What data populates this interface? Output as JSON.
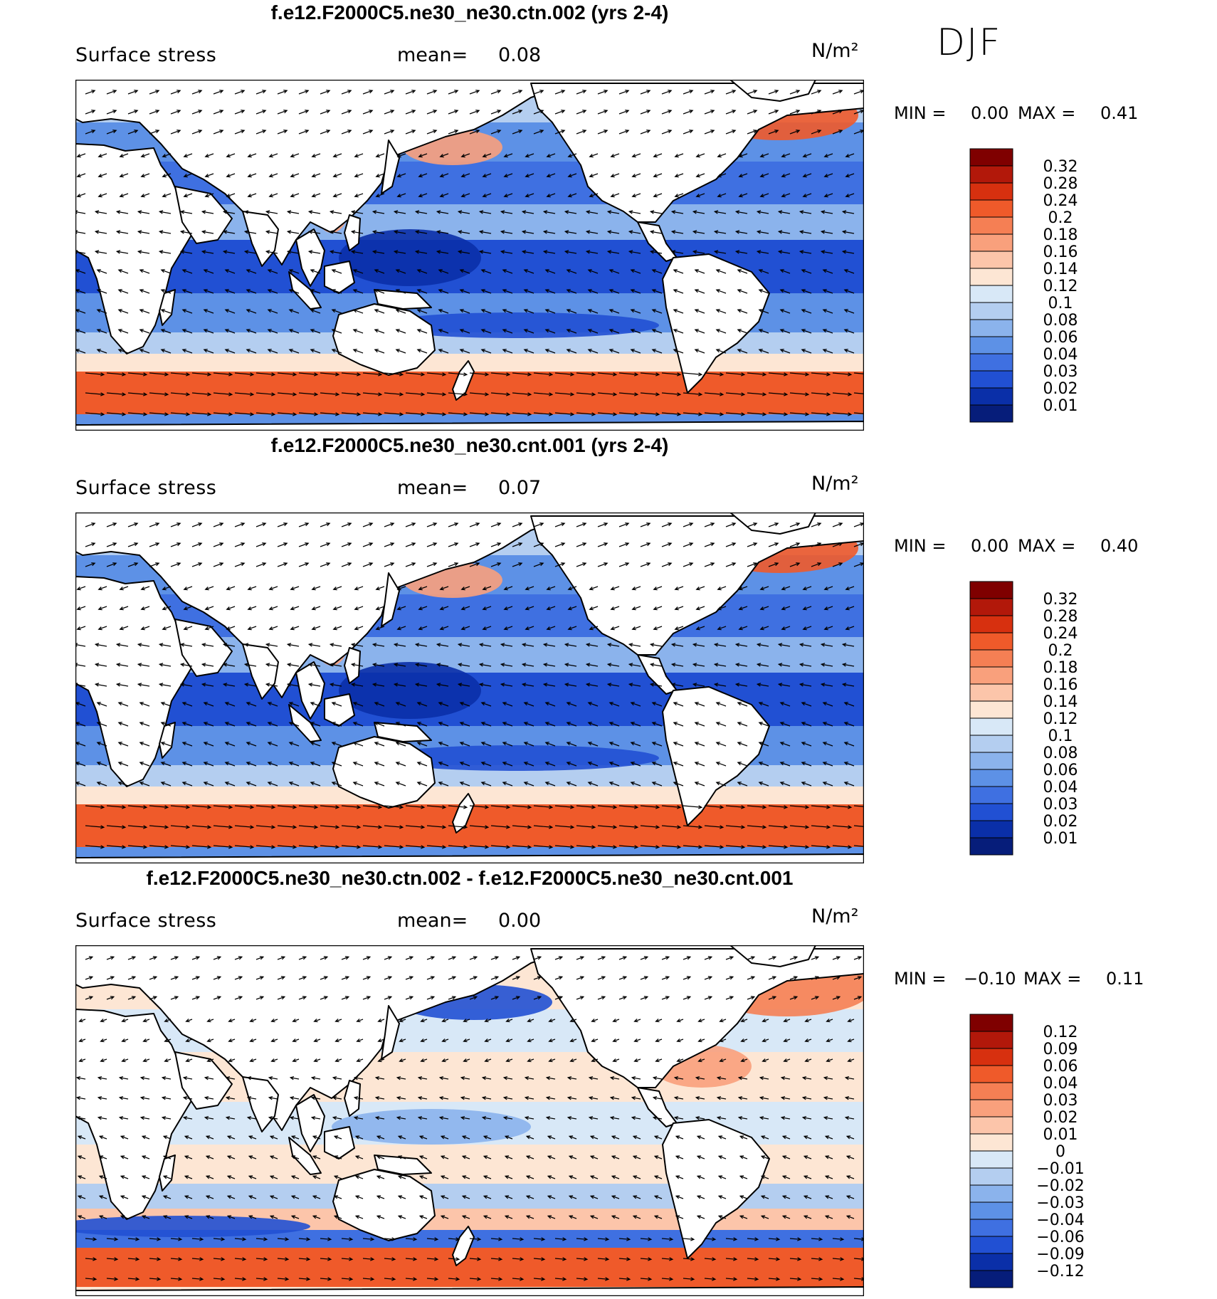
{
  "season": "DJF",
  "panels": [
    {
      "title": "f.e12.F2000C5.ne30_ne30.ctn.002 (yrs 2-4)",
      "variable": "Surface stress",
      "mean_label": "mean=",
      "mean_value": "0.08",
      "units": "N/m²",
      "min_label": "MIN =",
      "min_value": "0.00",
      "max_label": "MAX =",
      "max_value": "0.41",
      "levels": [
        "0.32",
        "0.28",
        "0.24",
        "0.2",
        "0.18",
        "0.16",
        "0.14",
        "0.12",
        "0.1",
        "0.08",
        "0.06",
        "0.04",
        "0.03",
        "0.02",
        "0.01"
      ]
    },
    {
      "title": "f.e12.F2000C5.ne30_ne30.cnt.001 (yrs 2-4)",
      "variable": "Surface stress",
      "mean_label": "mean=",
      "mean_value": "0.07",
      "units": "N/m²",
      "min_label": "MIN =",
      "min_value": "0.00",
      "max_label": "MAX =",
      "max_value": "0.40",
      "levels": [
        "0.32",
        "0.28",
        "0.24",
        "0.2",
        "0.18",
        "0.16",
        "0.14",
        "0.12",
        "0.1",
        "0.08",
        "0.06",
        "0.04",
        "0.03",
        "0.02",
        "0.01"
      ]
    },
    {
      "title": "f.e12.F2000C5.ne30_ne30.ctn.002 - f.e12.F2000C5.ne30_ne30.cnt.001",
      "variable": "Surface stress",
      "mean_label": "mean=",
      "mean_value": "0.00",
      "units": "N/m²",
      "min_label": "MIN =",
      "min_value": "−0.10",
      "max_label": "MAX =",
      "max_value": "0.11",
      "levels": [
        "0.12",
        "0.09",
        "0.06",
        "0.04",
        "0.03",
        "0.02",
        "0.01",
        "0",
        "−0.01",
        "−0.02",
        "−0.03",
        "−0.04",
        "−0.06",
        "−0.09",
        "−0.12"
      ]
    }
  ],
  "colors": {
    "seq": [
      "#7f0000",
      "#b2180a",
      "#d7300f",
      "#ef5a2a",
      "#f57f54",
      "#f9a07c",
      "#fcc5aa",
      "#fde6d4",
      "#d8e8f7",
      "#b4cef0",
      "#8bb3ec",
      "#5d91e6",
      "#3f70e1",
      "#2150d3",
      "#0a2fa8",
      "#061d7a"
    ],
    "land": "#ffffff",
    "coast": "#000000"
  }
}
